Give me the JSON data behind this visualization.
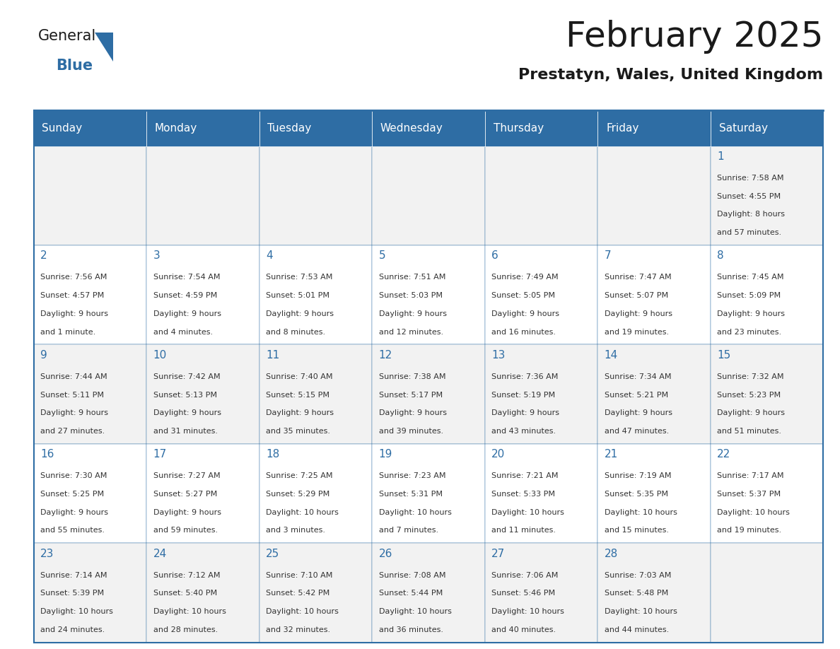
{
  "title": "February 2025",
  "subtitle": "Prestatyn, Wales, United Kingdom",
  "header_bg": "#2E6DA4",
  "header_text_color": "#FFFFFF",
  "cell_bg_light": "#F2F2F2",
  "cell_bg_white": "#FFFFFF",
  "day_number_color": "#2E6DA4",
  "cell_text_color": "#333333",
  "border_color": "#2E6DA4",
  "days_of_week": [
    "Sunday",
    "Monday",
    "Tuesday",
    "Wednesday",
    "Thursday",
    "Friday",
    "Saturday"
  ],
  "calendar_data": [
    [
      null,
      null,
      null,
      null,
      null,
      null,
      {
        "day": 1,
        "sunrise": "7:58 AM",
        "sunset": "4:55 PM",
        "daylight": "8 hours\nand 57 minutes."
      }
    ],
    [
      {
        "day": 2,
        "sunrise": "7:56 AM",
        "sunset": "4:57 PM",
        "daylight": "9 hours\nand 1 minute."
      },
      {
        "day": 3,
        "sunrise": "7:54 AM",
        "sunset": "4:59 PM",
        "daylight": "9 hours\nand 4 minutes."
      },
      {
        "day": 4,
        "sunrise": "7:53 AM",
        "sunset": "5:01 PM",
        "daylight": "9 hours\nand 8 minutes."
      },
      {
        "day": 5,
        "sunrise": "7:51 AM",
        "sunset": "5:03 PM",
        "daylight": "9 hours\nand 12 minutes."
      },
      {
        "day": 6,
        "sunrise": "7:49 AM",
        "sunset": "5:05 PM",
        "daylight": "9 hours\nand 16 minutes."
      },
      {
        "day": 7,
        "sunrise": "7:47 AM",
        "sunset": "5:07 PM",
        "daylight": "9 hours\nand 19 minutes."
      },
      {
        "day": 8,
        "sunrise": "7:45 AM",
        "sunset": "5:09 PM",
        "daylight": "9 hours\nand 23 minutes."
      }
    ],
    [
      {
        "day": 9,
        "sunrise": "7:44 AM",
        "sunset": "5:11 PM",
        "daylight": "9 hours\nand 27 minutes."
      },
      {
        "day": 10,
        "sunrise": "7:42 AM",
        "sunset": "5:13 PM",
        "daylight": "9 hours\nand 31 minutes."
      },
      {
        "day": 11,
        "sunrise": "7:40 AM",
        "sunset": "5:15 PM",
        "daylight": "9 hours\nand 35 minutes."
      },
      {
        "day": 12,
        "sunrise": "7:38 AM",
        "sunset": "5:17 PM",
        "daylight": "9 hours\nand 39 minutes."
      },
      {
        "day": 13,
        "sunrise": "7:36 AM",
        "sunset": "5:19 PM",
        "daylight": "9 hours\nand 43 minutes."
      },
      {
        "day": 14,
        "sunrise": "7:34 AM",
        "sunset": "5:21 PM",
        "daylight": "9 hours\nand 47 minutes."
      },
      {
        "day": 15,
        "sunrise": "7:32 AM",
        "sunset": "5:23 PM",
        "daylight": "9 hours\nand 51 minutes."
      }
    ],
    [
      {
        "day": 16,
        "sunrise": "7:30 AM",
        "sunset": "5:25 PM",
        "daylight": "9 hours\nand 55 minutes."
      },
      {
        "day": 17,
        "sunrise": "7:27 AM",
        "sunset": "5:27 PM",
        "daylight": "9 hours\nand 59 minutes."
      },
      {
        "day": 18,
        "sunrise": "7:25 AM",
        "sunset": "5:29 PM",
        "daylight": "10 hours\nand 3 minutes."
      },
      {
        "day": 19,
        "sunrise": "7:23 AM",
        "sunset": "5:31 PM",
        "daylight": "10 hours\nand 7 minutes."
      },
      {
        "day": 20,
        "sunrise": "7:21 AM",
        "sunset": "5:33 PM",
        "daylight": "10 hours\nand 11 minutes."
      },
      {
        "day": 21,
        "sunrise": "7:19 AM",
        "sunset": "5:35 PM",
        "daylight": "10 hours\nand 15 minutes."
      },
      {
        "day": 22,
        "sunrise": "7:17 AM",
        "sunset": "5:37 PM",
        "daylight": "10 hours\nand 19 minutes."
      }
    ],
    [
      {
        "day": 23,
        "sunrise": "7:14 AM",
        "sunset": "5:39 PM",
        "daylight": "10 hours\nand 24 minutes."
      },
      {
        "day": 24,
        "sunrise": "7:12 AM",
        "sunset": "5:40 PM",
        "daylight": "10 hours\nand 28 minutes."
      },
      {
        "day": 25,
        "sunrise": "7:10 AM",
        "sunset": "5:42 PM",
        "daylight": "10 hours\nand 32 minutes."
      },
      {
        "day": 26,
        "sunrise": "7:08 AM",
        "sunset": "5:44 PM",
        "daylight": "10 hours\nand 36 minutes."
      },
      {
        "day": 27,
        "sunrise": "7:06 AM",
        "sunset": "5:46 PM",
        "daylight": "10 hours\nand 40 minutes."
      },
      {
        "day": 28,
        "sunrise": "7:03 AM",
        "sunset": "5:48 PM",
        "daylight": "10 hours\nand 44 minutes."
      },
      null
    ]
  ],
  "logo_text_general": "General",
  "logo_text_blue": "Blue",
  "logo_color_general": "#1a1a1a",
  "logo_color_blue": "#2E6DA4",
  "logo_triangle_color": "#2E6DA4"
}
